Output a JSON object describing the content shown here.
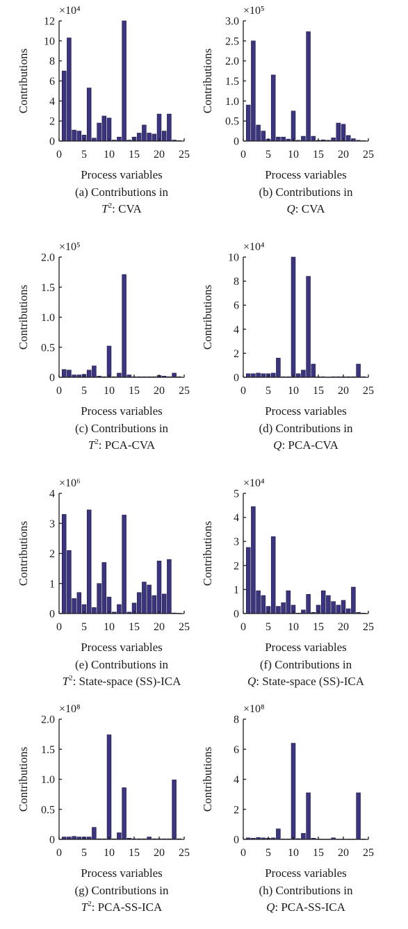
{
  "chart_data": [
    {
      "type": "bar",
      "panel": "a",
      "exponent_label": "×10⁴",
      "x": [
        1,
        2,
        3,
        4,
        5,
        6,
        7,
        8,
        9,
        10,
        11,
        12,
        13,
        14,
        15,
        16,
        17,
        18,
        19,
        20,
        21,
        22,
        23,
        24
      ],
      "values": [
        7.0,
        10.3,
        1.1,
        1.0,
        0.6,
        5.3,
        0.3,
        1.8,
        2.5,
        2.3,
        0.1,
        0.4,
        12.0,
        0.1,
        0.4,
        0.8,
        1.6,
        0.8,
        0.7,
        2.7,
        1.0,
        2.7,
        0.1,
        0.05
      ],
      "xlabel": "Process variables",
      "ylabel": "Contributions",
      "xlim": [
        0,
        25
      ],
      "ylim": [
        0,
        12
      ],
      "xticks": [
        "0",
        "5",
        "10",
        "15",
        "20",
        "25"
      ],
      "yticks": [
        "0",
        "2",
        "4",
        "6",
        "8",
        "10",
        "12"
      ],
      "caption_line1": "(a) Contributions in",
      "caption_stat": "T",
      "caption_sup": "2",
      "caption_rest": ": CVA"
    },
    {
      "type": "bar",
      "panel": "b",
      "exponent_label": "×10⁵",
      "x": [
        1,
        2,
        3,
        4,
        5,
        6,
        7,
        8,
        9,
        10,
        11,
        12,
        13,
        14,
        15,
        16,
        17,
        18,
        19,
        20,
        21,
        22,
        23,
        24
      ],
      "values": [
        0.9,
        2.5,
        0.4,
        0.25,
        0.05,
        1.65,
        0.1,
        0.1,
        0.05,
        0.75,
        0.02,
        0.12,
        2.73,
        0.12,
        0.02,
        0.03,
        0.02,
        0.08,
        0.45,
        0.42,
        0.14,
        0.06,
        0.02,
        0.01
      ],
      "xlabel": "Process variables",
      "ylabel": "Contributions",
      "xlim": [
        0,
        25
      ],
      "ylim": [
        0,
        3
      ],
      "xticks": [
        "0",
        "5",
        "10",
        "15",
        "20",
        "25"
      ],
      "yticks": [
        "0",
        "0.5",
        "1.0",
        "1.5",
        "2.0",
        "2.5",
        "3.0"
      ],
      "caption_line1": "(b) Contributions in",
      "caption_stat": "Q",
      "caption_sup": "",
      "caption_rest": ": CVA"
    },
    {
      "type": "bar",
      "panel": "c",
      "exponent_label": "×10⁵",
      "x": [
        1,
        2,
        3,
        4,
        5,
        6,
        7,
        8,
        9,
        10,
        11,
        12,
        13,
        14,
        15,
        16,
        17,
        18,
        19,
        20,
        21,
        22,
        23,
        24
      ],
      "values": [
        0.13,
        0.12,
        0.04,
        0.04,
        0.05,
        0.12,
        0.19,
        0.02,
        0.01,
        0.52,
        0.01,
        0.07,
        1.71,
        0.04,
        0.01,
        0.01,
        0.01,
        0.01,
        0.01,
        0.03,
        0.02,
        0.01,
        0.07,
        0.01
      ],
      "xlabel": "Process variables",
      "ylabel": "Contributions",
      "xlim": [
        0,
        25
      ],
      "ylim": [
        0,
        2
      ],
      "xticks": [
        "0",
        "5",
        "10",
        "15",
        "20",
        "25"
      ],
      "yticks": [
        "0",
        "0.5",
        "1.0",
        "1.5",
        "2.0"
      ],
      "caption_line1": "(c) Contributions in",
      "caption_stat": "T",
      "caption_sup": "2",
      "caption_rest": ": PCA-CVA"
    },
    {
      "type": "bar",
      "panel": "d",
      "exponent_label": "×10⁴",
      "x": [
        1,
        2,
        3,
        4,
        5,
        6,
        7,
        8,
        9,
        10,
        11,
        12,
        13,
        14,
        15,
        16,
        17,
        18,
        19,
        20,
        21,
        22,
        23,
        24
      ],
      "values": [
        0.3,
        0.3,
        0.35,
        0.3,
        0.3,
        0.35,
        1.6,
        0.05,
        0.05,
        10.0,
        0.3,
        0.6,
        8.4,
        1.1,
        0.05,
        0.05,
        0.03,
        0.05,
        0.05,
        0.05,
        0.05,
        0.05,
        1.1,
        0.05
      ],
      "xlabel": "Process variables",
      "ylabel": "Contributions",
      "xlim": [
        0,
        25
      ],
      "ylim": [
        0,
        10
      ],
      "xticks": [
        "0",
        "5",
        "10",
        "15",
        "20",
        "25"
      ],
      "yticks": [
        "0",
        "2",
        "4",
        "6",
        "8",
        "10"
      ],
      "caption_line1": "(d) Contributions in",
      "caption_stat": "Q",
      "caption_sup": "",
      "caption_rest": ": PCA-CVA"
    },
    {
      "type": "bar",
      "panel": "e",
      "exponent_label": "×10⁶",
      "x": [
        1,
        2,
        3,
        4,
        5,
        6,
        7,
        8,
        9,
        10,
        11,
        12,
        13,
        14,
        15,
        16,
        17,
        18,
        19,
        20,
        21,
        22,
        23,
        24
      ],
      "values": [
        3.3,
        2.1,
        0.5,
        0.7,
        0.3,
        3.45,
        0.2,
        1.0,
        1.7,
        0.55,
        0.05,
        0.3,
        3.28,
        0.05,
        0.35,
        0.7,
        1.05,
        0.95,
        0.6,
        1.75,
        0.65,
        1.8,
        0.02,
        0.01
      ],
      "xlabel": "Process variables",
      "ylabel": "Contributions",
      "xlim": [
        0,
        25
      ],
      "ylim": [
        0,
        4
      ],
      "xticks": [
        "0",
        "5",
        "10",
        "15",
        "20",
        "25"
      ],
      "yticks": [
        "0",
        "1",
        "2",
        "3",
        "4"
      ],
      "caption_line1": "(e) Contributions in",
      "caption_stat": "T",
      "caption_sup": "2",
      "caption_rest": ": State-space (SS)-ICA"
    },
    {
      "type": "bar",
      "panel": "f",
      "exponent_label": "×10⁴",
      "x": [
        1,
        2,
        3,
        4,
        5,
        6,
        7,
        8,
        9,
        10,
        11,
        12,
        13,
        14,
        15,
        16,
        17,
        18,
        19,
        20,
        21,
        22,
        23,
        24
      ],
      "values": [
        2.75,
        4.45,
        0.95,
        0.75,
        0.3,
        3.2,
        0.3,
        0.45,
        0.95,
        0.35,
        0.02,
        0.15,
        0.8,
        0.05,
        0.35,
        0.95,
        0.75,
        0.5,
        0.35,
        0.55,
        0.2,
        1.1,
        0.05,
        0.02
      ],
      "xlabel": "Process variables",
      "ylabel": "Contributions",
      "xlim": [
        0,
        25
      ],
      "ylim": [
        0,
        5
      ],
      "xticks": [
        "0",
        "5",
        "10",
        "15",
        "20",
        "25"
      ],
      "yticks": [
        "0",
        "1",
        "2",
        "3",
        "4",
        "5"
      ],
      "caption_line1": "(f) Contributions in",
      "caption_stat": "Q",
      "caption_sup": "",
      "caption_rest": ": State-space (SS)-ICA"
    },
    {
      "type": "bar",
      "panel": "g",
      "exponent_label": "×10⁸",
      "x": [
        1,
        2,
        3,
        4,
        5,
        6,
        7,
        8,
        9,
        10,
        11,
        12,
        13,
        14,
        15,
        16,
        17,
        18,
        19,
        20,
        21,
        22,
        23,
        24
      ],
      "values": [
        0.04,
        0.04,
        0.05,
        0.04,
        0.04,
        0.04,
        0.2,
        0.01,
        0.01,
        1.74,
        0.01,
        0.11,
        0.86,
        0.02,
        0.01,
        0.01,
        0.01,
        0.04,
        0.01,
        0.01,
        0.01,
        0.01,
        0.99,
        0.01
      ],
      "xlabel": "Process variables",
      "ylabel": "Contributions",
      "xlim": [
        0,
        25
      ],
      "ylim": [
        0,
        2
      ],
      "xticks": [
        "0",
        "5",
        "10",
        "15",
        "20",
        "25"
      ],
      "yticks": [
        "0",
        "0.5",
        "1.0",
        "1.5",
        "2.0"
      ],
      "caption_line1": "(g) Contributions in",
      "caption_stat": "T",
      "caption_sup": "2",
      "caption_rest": ": PCA-SS-ICA"
    },
    {
      "type": "bar",
      "panel": "h",
      "exponent_label": "×10⁸",
      "x": [
        1,
        2,
        3,
        4,
        5,
        6,
        7,
        8,
        9,
        10,
        11,
        12,
        13,
        14,
        15,
        16,
        17,
        18,
        19,
        20,
        21,
        22,
        23,
        24
      ],
      "values": [
        0.1,
        0.08,
        0.12,
        0.1,
        0.08,
        0.1,
        0.7,
        0.03,
        0.03,
        6.4,
        0.05,
        0.4,
        3.1,
        0.08,
        0.03,
        0.02,
        0.02,
        0.1,
        0.02,
        0.02,
        0.02,
        0.02,
        3.1,
        0.02
      ],
      "xlabel": "Process variables",
      "ylabel": "Contributions",
      "xlim": [
        0,
        25
      ],
      "ylim": [
        0,
        8
      ],
      "xticks": [
        "0",
        "5",
        "10",
        "15",
        "20",
        "25"
      ],
      "yticks": [
        "0",
        "2",
        "4",
        "6",
        "8"
      ],
      "caption_line1": "(h) Contributions in",
      "caption_stat": "Q",
      "caption_sup": "",
      "caption_rest": ": PCA-SS-ICA"
    }
  ]
}
